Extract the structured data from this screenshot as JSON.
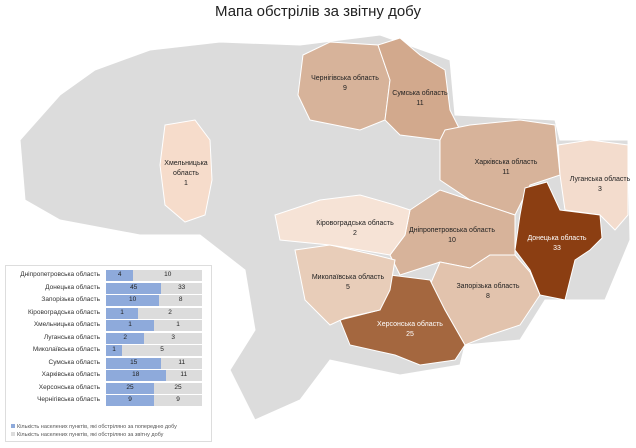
{
  "title": "Мапа обстрілів за звітну добу",
  "colors": {
    "base": "#dcdcdc",
    "low": "#f6dccb",
    "mid": "#d7b39a",
    "high": "#a4673f",
    "max": "#8b3e12",
    "prev": "#8eaadb",
    "curr": "#dcdcdc"
  },
  "regions": [
    {
      "name": "Чернігівська область",
      "value": "9"
    },
    {
      "name": "Сумська область",
      "value": "11"
    },
    {
      "name": "Харківська область",
      "value": "11"
    },
    {
      "name": "Луганська область",
      "value": "3"
    },
    {
      "name": "Донецька область",
      "value": "33"
    },
    {
      "name": "Дніпропетровська область",
      "value": "10"
    },
    {
      "name": "Запорізька область",
      "value": "8"
    },
    {
      "name": "Херсонська область",
      "value": "25"
    },
    {
      "name": "Миколаївська область",
      "value": "5"
    },
    {
      "name": "Кіровоградська область",
      "value": "2"
    },
    {
      "name": "Хмельницька область",
      "value": "1"
    }
  ],
  "chart_data": {
    "type": "bar",
    "stacked": "100%",
    "categories": [
      "Дніпропетровська область",
      "Донецька область",
      "Запорізька область",
      "Кіровоградська область",
      "Хмельницька область",
      "Луганська область",
      "Миколаївська область",
      "Сумська область",
      "Харківська область",
      "Херсонська область",
      "Чернігівська область"
    ],
    "series": [
      {
        "name": "Кількість населених пунктів, які обстріляно за попередню добу",
        "values": [
          4,
          45,
          10,
          1,
          1,
          2,
          1,
          15,
          18,
          25,
          9
        ]
      },
      {
        "name": "Кількість населених пунктів, які обстріляно за звітну добу",
        "values": [
          10,
          33,
          8,
          2,
          1,
          3,
          5,
          11,
          11,
          25,
          9
        ]
      }
    ],
    "legend": "bottom"
  }
}
